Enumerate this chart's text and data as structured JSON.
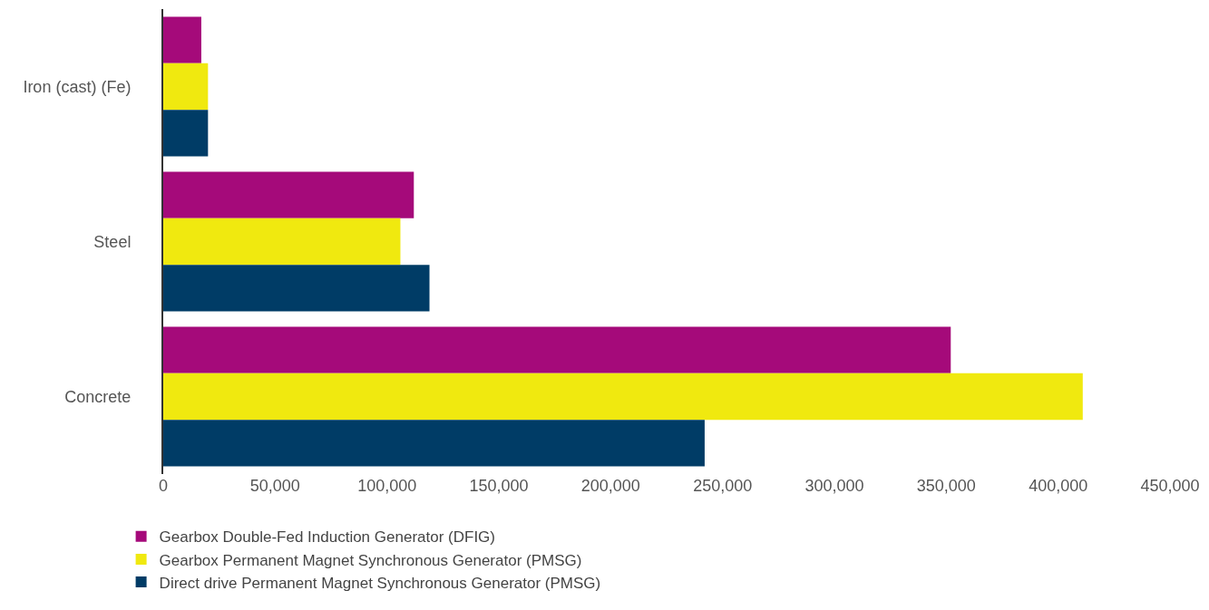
{
  "chart_data": {
    "type": "bar",
    "orientation": "horizontal",
    "categories": [
      "Iron (cast) (Fe)",
      "Steel",
      "Concrete"
    ],
    "series": [
      {
        "name": "Gearbox Double-Fed Induction Generator (DFIG)",
        "color": "#a50a7a",
        "values": [
          17000,
          112000,
          352000
        ]
      },
      {
        "name": "Gearbox Permanent Magnet Synchronous Generator (PMSG)",
        "color": "#f0e90f",
        "values": [
          20000,
          106000,
          411000
        ]
      },
      {
        "name": "Direct drive Permanent Magnet Synchronous Generator (PMSG)",
        "color": "#003c66",
        "values": [
          20000,
          119000,
          242000
        ]
      }
    ],
    "xlim": [
      0,
      450000
    ],
    "xticks": [
      0,
      {
        "value": 50000,
        "label": "50,000"
      },
      {
        "value": 100000,
        "label": "100,000"
      },
      {
        "value": 150000,
        "label": "150,000"
      },
      {
        "value": 200000,
        "label": "200,000"
      },
      {
        "value": 250000,
        "label": "250,000"
      },
      {
        "value": 300000,
        "label": "300,000"
      },
      {
        "value": 350000,
        "label": "350,000"
      },
      {
        "value": 400000,
        "label": "400,000"
      },
      {
        "value": 450000,
        "label": "450,000"
      }
    ],
    "grid": false,
    "legend": "bottom"
  }
}
